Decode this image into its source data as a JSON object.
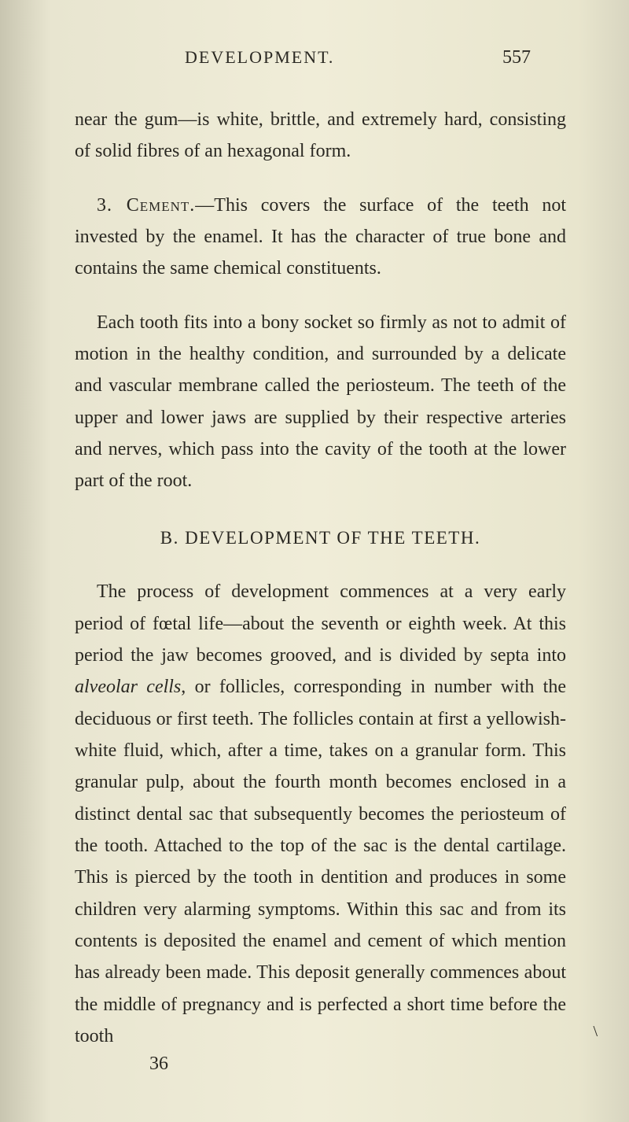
{
  "page": {
    "header_title": "DEVELOPMENT.",
    "page_number": "557",
    "colors": {
      "background_left": "#c8c5b0",
      "background_center": "#f0edd8",
      "background_right": "#d8d5c0",
      "text": "#2a2822"
    },
    "typography": {
      "body_fontsize": 24,
      "header_fontsize": 22,
      "heading_fontsize": 23,
      "line_height": 1.68,
      "font_family": "Times New Roman"
    },
    "para1_start": "near the gum—is white, brittle, and extremely hard, consisting of solid fibres of an hexagonal form.",
    "para2_label": "3. Cement.",
    "para2_text": "—This covers the surface of the teeth not invested by the enamel. It has the character of true bone and contains the same chemical constituents.",
    "para3": "Each tooth fits into a bony socket so firmly as not to admit of motion in the healthy condition, and surrounded by a delicate and vascular membrane called the periosteum. The teeth of the upper and lower jaws are supplied by their respective arteries and nerves, which pass into the cavity of the tooth at the lower part of the root.",
    "section_heading": "B. DEVELOPMENT OF THE TEETH.",
    "para4_a": "The process of development commences at a very early period of fœtal life—about the seventh or eighth week. At this period the jaw becomes grooved, and is divided by septa into ",
    "para4_italic": "alveolar cells",
    "para4_b": ", or follicles, corresponding in number with the deciduous or first teeth. The follicles contain at first a yellowish-white fluid, which, after a time, takes on a granular form. This granular pulp, about the fourth month becomes enclosed in a distinct dental sac that subsequently becomes the periosteum of the tooth. Attached to the top of the sac is the dental cartilage. This is pierced by the tooth in dentition and produces in some children very alarming symptoms. Within this sac and from its contents is deposited the enamel and cement of which mention has already been made. This deposit generally commences about the middle of pregnancy and is perfected a short time before the tooth",
    "footer_number": "36",
    "corner_mark": "\\"
  }
}
